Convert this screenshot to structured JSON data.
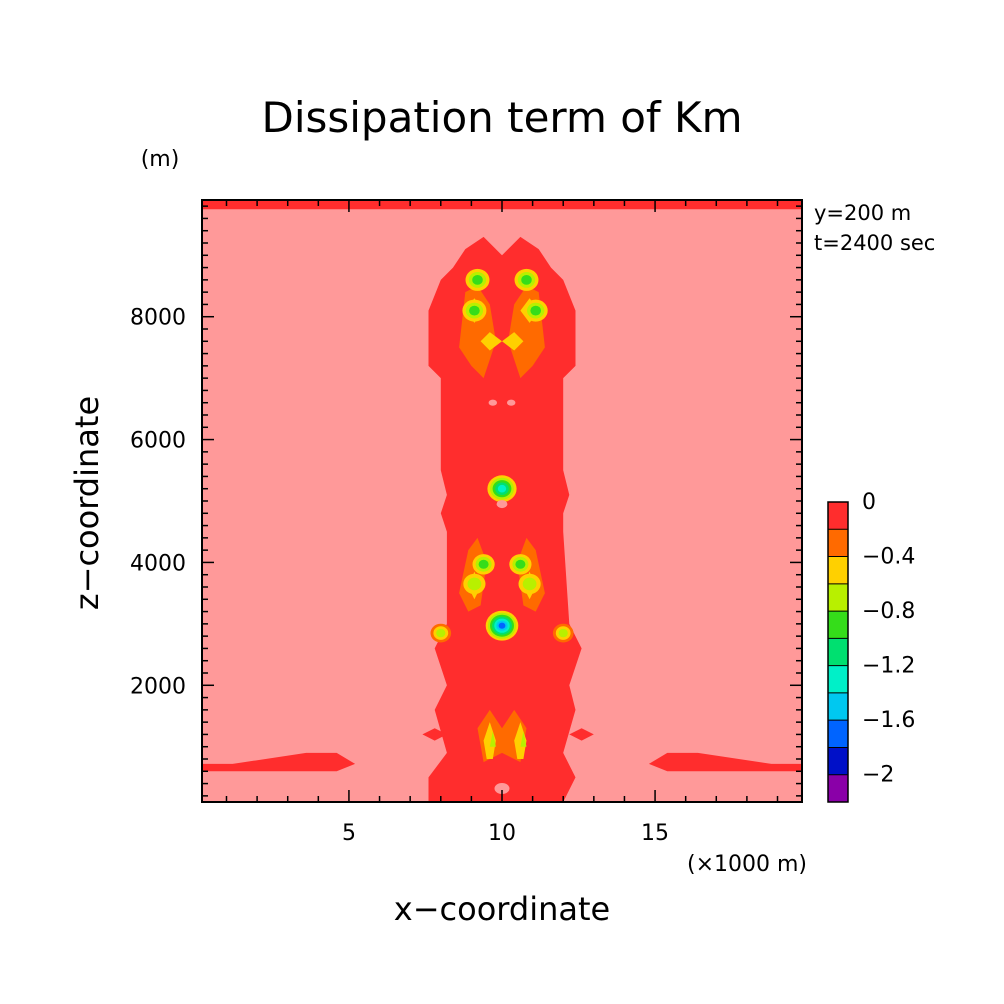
{
  "chart_data": {
    "type": "heatmap",
    "title": "Dissipation term of Km",
    "xlabel": "x−coordinate",
    "ylabel": "z−coordinate",
    "x_unit": "(×1000 m)",
    "y_unit": "(m)",
    "xlim": [
      0.2,
      19.8
    ],
    "ylim": [
      100,
      9900
    ],
    "x_ticks": [
      5,
      10,
      15
    ],
    "x_tick_labels": [
      "5",
      "10",
      "15"
    ],
    "y_ticks": [
      2000,
      4000,
      6000,
      8000
    ],
    "y_tick_labels": [
      "2000",
      "4000",
      "6000",
      "8000"
    ],
    "info": [
      "y=200 m",
      "t=2400 sec"
    ],
    "background_level": "above 0",
    "colorbar": {
      "labels": [
        "0",
        "−0.4",
        "−0.8",
        "−1.2",
        "−1.6",
        "−2"
      ],
      "levels": [
        {
          "range": "0 to −0.2",
          "color": "#ff2d2d"
        },
        {
          "range": "−0.2 to −0.4",
          "color": "#ff6a00"
        },
        {
          "range": "−0.4 to −0.6",
          "color": "#ffd000"
        },
        {
          "range": "−0.6 to −0.8",
          "color": "#b8f000"
        },
        {
          "range": "−0.8 to −1.0",
          "color": "#35dd1a"
        },
        {
          "range": "−1.0 to −1.2",
          "color": "#00e070"
        },
        {
          "range": "−1.2 to −1.4",
          "color": "#00f0c8"
        },
        {
          "range": "−1.4 to −1.6",
          "color": "#00c8f0"
        },
        {
          "range": "−1.6 to −1.8",
          "color": "#0064ff"
        },
        {
          "range": "−1.8 to −2.0",
          "color": "#0010c8"
        },
        {
          "range": "below −2.0",
          "color": "#8a00a8"
        }
      ]
    },
    "colors": {
      "background": "#ff9999",
      "level_0": "#ff2d2d",
      "level_1": "#ff6a00",
      "level_2": "#ffd000",
      "level_3": "#b8f000",
      "level_4": "#35dd1a",
      "level_5": "#00e070",
      "level_6": "#00f0c8",
      "level_7": "#00c8f0",
      "level_8": "#0064ff"
    },
    "regions": [
      {
        "level": 0,
        "points": [
          [
            0.2,
            9900
          ],
          [
            19.8,
            9900
          ],
          [
            19.8,
            9750
          ],
          [
            0.2,
            9750
          ]
        ]
      },
      {
        "level": 0,
        "points": [
          [
            7.6,
            100
          ],
          [
            7.6,
            500
          ],
          [
            8.2,
            900
          ],
          [
            7.8,
            1600
          ],
          [
            8.2,
            2000
          ],
          [
            7.8,
            2600
          ],
          [
            8.2,
            3000
          ],
          [
            8.2,
            4500
          ],
          [
            8.0,
            4800
          ],
          [
            8.2,
            5100
          ],
          [
            8.0,
            5500
          ],
          [
            8.0,
            7000
          ],
          [
            7.6,
            7200
          ],
          [
            7.6,
            8100
          ],
          [
            8.0,
            8600
          ],
          [
            8.4,
            8800
          ],
          [
            8.8,
            9100
          ],
          [
            9.4,
            9300
          ],
          [
            10.0,
            9000
          ],
          [
            10.6,
            9300
          ],
          [
            11.2,
            9100
          ],
          [
            11.6,
            8800
          ],
          [
            12.0,
            8600
          ],
          [
            12.4,
            8100
          ],
          [
            12.4,
            7200
          ],
          [
            12.0,
            7000
          ],
          [
            12.0,
            5500
          ],
          [
            12.2,
            5100
          ],
          [
            12.0,
            4800
          ],
          [
            12.0,
            4500
          ],
          [
            12.2,
            3000
          ],
          [
            12.6,
            2600
          ],
          [
            12.2,
            2000
          ],
          [
            12.4,
            1600
          ],
          [
            12.0,
            900
          ],
          [
            12.4,
            500
          ],
          [
            12.0,
            100
          ]
        ]
      },
      {
        "level": 0,
        "points": [
          [
            0.2,
            720
          ],
          [
            1.2,
            720
          ],
          [
            3.6,
            900
          ],
          [
            4.6,
            900
          ],
          [
            5.2,
            720
          ],
          [
            4.6,
            600
          ],
          [
            1.2,
            600
          ],
          [
            0.2,
            600
          ]
        ]
      },
      {
        "level": 0,
        "points": [
          [
            19.8,
            720
          ],
          [
            18.8,
            720
          ],
          [
            16.4,
            900
          ],
          [
            15.4,
            900
          ],
          [
            14.8,
            720
          ],
          [
            15.4,
            600
          ],
          [
            18.8,
            600
          ],
          [
            19.8,
            600
          ]
        ]
      },
      {
        "level": 0,
        "points": [
          [
            7.4,
            1200
          ],
          [
            7.8,
            1300
          ],
          [
            8.2,
            1200
          ],
          [
            7.8,
            1100
          ]
        ]
      },
      {
        "level": 0,
        "points": [
          [
            12.2,
            1200
          ],
          [
            12.6,
            1300
          ],
          [
            13.0,
            1200
          ],
          [
            12.6,
            1100
          ]
        ]
      },
      {
        "level": 1,
        "points": [
          [
            8.6,
            7500
          ],
          [
            8.8,
            8400
          ],
          [
            9.2,
            8500
          ],
          [
            9.6,
            8200
          ],
          [
            9.8,
            7600
          ],
          [
            9.4,
            7000
          ],
          [
            9.0,
            7200
          ]
        ]
      },
      {
        "level": 1,
        "points": [
          [
            11.4,
            7500
          ],
          [
            11.2,
            8400
          ],
          [
            10.8,
            8500
          ],
          [
            10.4,
            8200
          ],
          [
            10.2,
            7600
          ],
          [
            10.6,
            7000
          ],
          [
            11.0,
            7200
          ]
        ]
      },
      {
        "level": 1,
        "points": [
          [
            8.6,
            3500
          ],
          [
            8.9,
            4200
          ],
          [
            9.2,
            4400
          ],
          [
            9.5,
            4000
          ],
          [
            9.3,
            3300
          ],
          [
            8.9,
            3200
          ]
        ]
      },
      {
        "level": 1,
        "points": [
          [
            11.4,
            3500
          ],
          [
            11.1,
            4200
          ],
          [
            10.8,
            4400
          ],
          [
            10.5,
            4000
          ],
          [
            10.7,
            3300
          ],
          [
            11.1,
            3200
          ]
        ]
      },
      {
        "level": 1,
        "points": [
          [
            9.4,
            750
          ],
          [
            9.2,
            1300
          ],
          [
            9.6,
            1600
          ],
          [
            10.0,
            1300
          ],
          [
            10.4,
            1600
          ],
          [
            10.8,
            1300
          ],
          [
            10.6,
            750
          ],
          [
            10.0,
            900
          ]
        ]
      },
      {
        "level": 2,
        "points": [
          [
            8.8,
            8100
          ],
          [
            9.1,
            8300
          ],
          [
            9.4,
            8100
          ],
          [
            9.1,
            7900
          ]
        ]
      },
      {
        "level": 2,
        "points": [
          [
            11.2,
            8100
          ],
          [
            10.9,
            8300
          ],
          [
            10.6,
            8100
          ],
          [
            10.9,
            7900
          ]
        ]
      },
      {
        "level": 2,
        "points": [
          [
            9.3,
            7600
          ],
          [
            9.6,
            7750
          ],
          [
            10.0,
            7600
          ],
          [
            9.6,
            7450
          ]
        ]
      },
      {
        "level": 2,
        "points": [
          [
            10.7,
            7600
          ],
          [
            10.4,
            7750
          ],
          [
            10.0,
            7600
          ],
          [
            10.4,
            7450
          ]
        ]
      },
      {
        "level": 2,
        "points": [
          [
            8.9,
            3600
          ],
          [
            9.1,
            3850
          ],
          [
            9.3,
            3600
          ],
          [
            9.1,
            3400
          ]
        ]
      },
      {
        "level": 2,
        "points": [
          [
            11.1,
            3600
          ],
          [
            10.9,
            3850
          ],
          [
            10.7,
            3600
          ],
          [
            10.9,
            3400
          ]
        ]
      },
      {
        "level": 2,
        "points": [
          [
            9.5,
            800
          ],
          [
            9.4,
            1100
          ],
          [
            9.6,
            1400
          ],
          [
            9.8,
            1100
          ],
          [
            9.7,
            800
          ]
        ]
      },
      {
        "level": 2,
        "points": [
          [
            10.5,
            800
          ],
          [
            10.4,
            1100
          ],
          [
            10.6,
            1400
          ],
          [
            10.8,
            1100
          ],
          [
            10.7,
            800
          ]
        ]
      },
      {
        "level": 3,
        "points": [
          [
            9.6,
            1000
          ],
          [
            9.7,
            1250
          ],
          [
            9.8,
            1000
          ]
        ]
      },
      {
        "level": 3,
        "points": [
          [
            10.6,
            1000
          ],
          [
            10.7,
            1250
          ],
          [
            10.8,
            1000
          ]
        ]
      }
    ],
    "points": [
      {
        "x": 9.2,
        "z": 8600,
        "r": 0.28,
        "rings": [
          2,
          3,
          4
        ]
      },
      {
        "x": 10.8,
        "z": 8600,
        "r": 0.28,
        "rings": [
          2,
          3,
          4
        ]
      },
      {
        "x": 9.1,
        "z": 8100,
        "r": 0.28,
        "rings": [
          2,
          3,
          4
        ]
      },
      {
        "x": 11.1,
        "z": 8100,
        "r": 0.28,
        "rings": [
          2,
          3,
          4
        ]
      },
      {
        "x": 9.4,
        "z": 3970,
        "r": 0.26,
        "rings": [
          2,
          3,
          4
        ]
      },
      {
        "x": 10.6,
        "z": 3970,
        "r": 0.26,
        "rings": [
          2,
          3,
          4
        ]
      },
      {
        "x": 9.1,
        "z": 3650,
        "r": 0.26,
        "rings": [
          2,
          3
        ]
      },
      {
        "x": 10.9,
        "z": 3650,
        "r": 0.26,
        "rings": [
          2,
          3
        ]
      },
      {
        "x": 8.0,
        "z": 2850,
        "r": 0.24,
        "rings": [
          1,
          2,
          3
        ]
      },
      {
        "x": 12.0,
        "z": 2850,
        "r": 0.24,
        "rings": [
          1,
          2,
          3
        ]
      },
      {
        "x": 10.0,
        "z": 5200,
        "r": 0.34,
        "rings": [
          2,
          3,
          4,
          5,
          6
        ]
      },
      {
        "x": 10.0,
        "z": 2970,
        "r": 0.38,
        "rings": [
          2,
          3,
          4,
          5,
          6,
          7,
          8
        ]
      }
    ],
    "holes": [
      {
        "x": 9.7,
        "z": 6600,
        "r": 0.14
      },
      {
        "x": 10.3,
        "z": 6600,
        "r": 0.14
      },
      {
        "x": 10.0,
        "z": 4950,
        "r": 0.18
      },
      {
        "x": 10.0,
        "z": 320,
        "r": 0.25
      }
    ]
  }
}
